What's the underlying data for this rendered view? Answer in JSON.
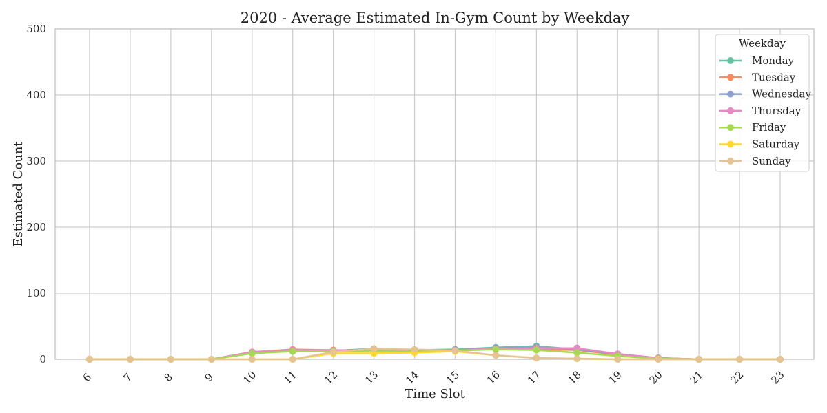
{
  "chart_data": {
    "type": "line",
    "title": "2020 - Average Estimated In-Gym Count by Weekday",
    "xlabel": "Time Slot",
    "ylabel": "Estimated Count",
    "x": [
      6,
      7,
      8,
      9,
      10,
      11,
      12,
      13,
      14,
      15,
      16,
      17,
      18,
      19,
      20,
      21,
      22,
      23
    ],
    "ylim": [
      0,
      500
    ],
    "yticks": [
      0,
      100,
      200,
      300,
      400,
      500
    ],
    "grid": true,
    "legend": {
      "title": "Weekday",
      "placement": "top-right"
    },
    "series": [
      {
        "name": "Monday",
        "color": "#66c2a5",
        "values": [
          0,
          0,
          0,
          0,
          10,
          12,
          13,
          16,
          14,
          15,
          18,
          20,
          15,
          7,
          1,
          0,
          0,
          0
        ]
      },
      {
        "name": "Tuesday",
        "color": "#fc8d62",
        "values": [
          0,
          0,
          0,
          0,
          11,
          15,
          14,
          13,
          12,
          14,
          16,
          15,
          14,
          7,
          2,
          0,
          0,
          0
        ]
      },
      {
        "name": "Wednesday",
        "color": "#8da0cb",
        "values": [
          0,
          0,
          0,
          0,
          10,
          13,
          13,
          14,
          13,
          14,
          17,
          18,
          15,
          8,
          2,
          0,
          0,
          0
        ]
      },
      {
        "name": "Thursday",
        "color": "#e78ac3",
        "values": [
          0,
          0,
          0,
          0,
          11,
          14,
          13,
          14,
          13,
          14,
          16,
          17,
          17,
          8,
          2,
          0,
          0,
          0
        ]
      },
      {
        "name": "Friday",
        "color": "#a6d854",
        "values": [
          0,
          0,
          0,
          0,
          9,
          12,
          12,
          13,
          12,
          13,
          15,
          14,
          10,
          5,
          1,
          0,
          0,
          0
        ]
      },
      {
        "name": "Saturday",
        "color": "#ffd92f",
        "values": [
          0,
          0,
          0,
          0,
          0,
          0,
          9,
          9,
          10,
          12,
          6,
          2,
          1,
          0,
          0,
          0,
          0,
          0
        ]
      },
      {
        "name": "Sunday",
        "color": "#e5c494",
        "values": [
          0,
          0,
          0,
          0,
          0,
          0,
          11,
          16,
          15,
          13,
          6,
          2,
          1,
          0,
          0,
          0,
          0,
          0
        ]
      }
    ]
  }
}
